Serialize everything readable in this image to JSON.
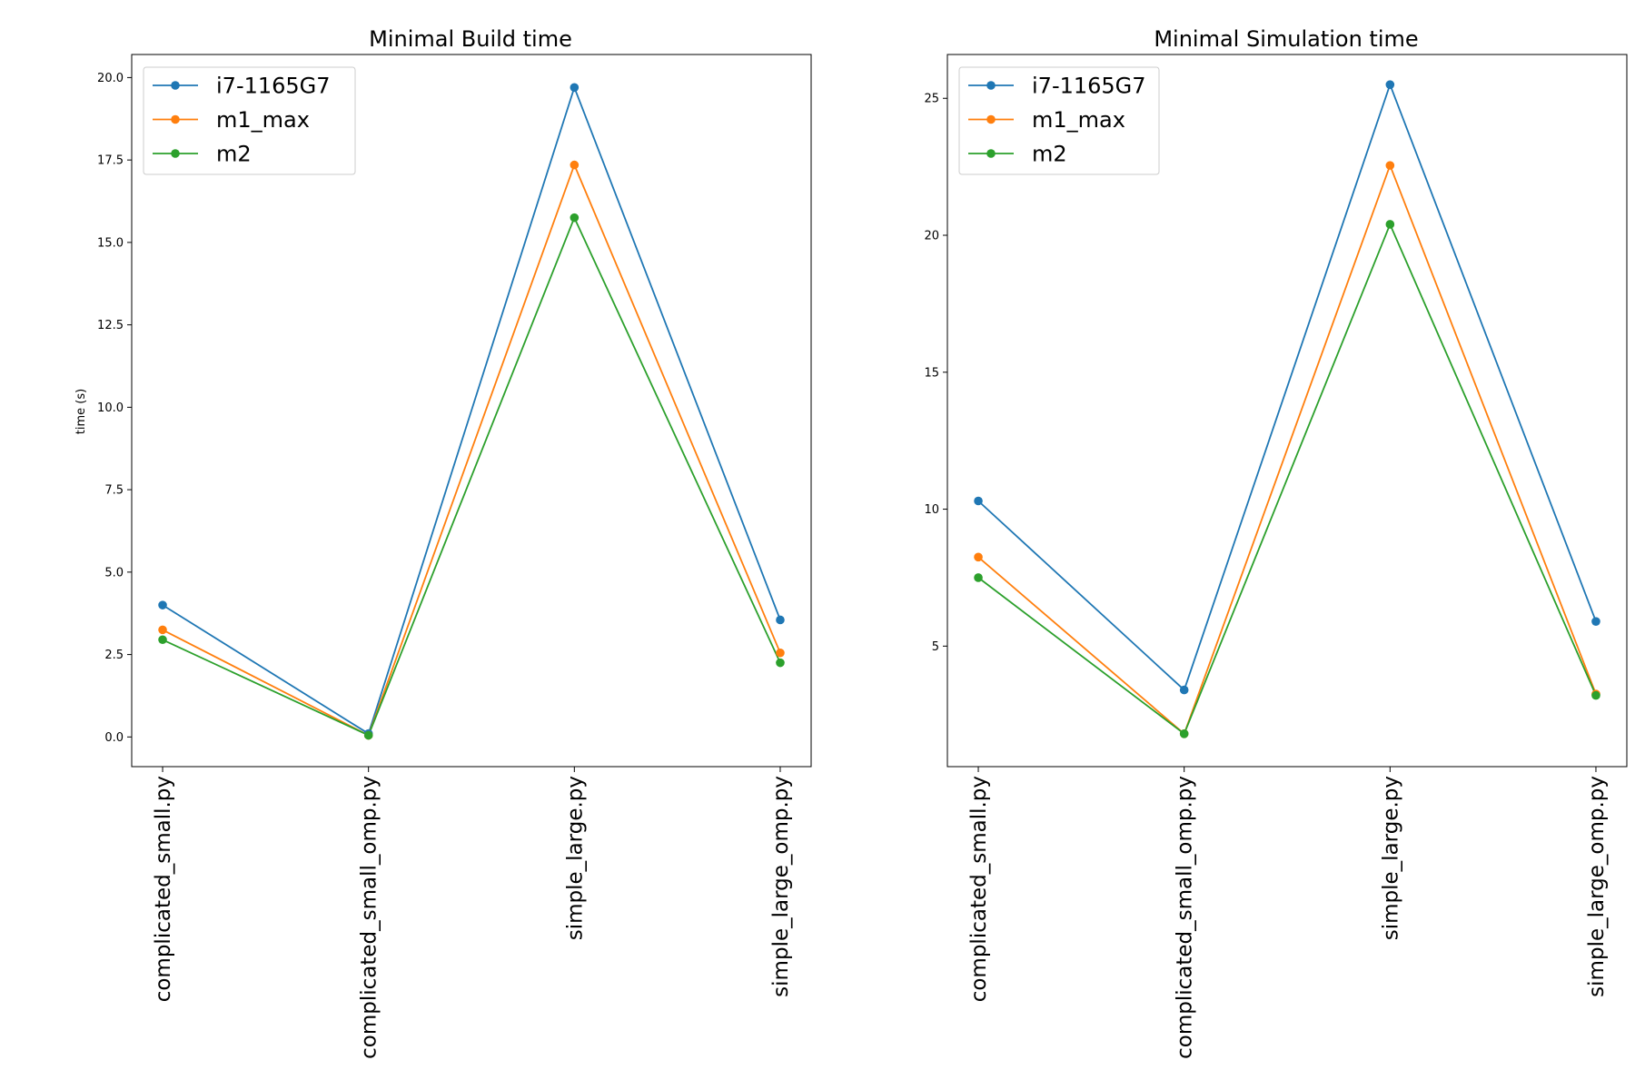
{
  "chart_data": [
    {
      "type": "line",
      "title": "Minimal Build time",
      "xlabel": "",
      "ylabel": "time (s)",
      "categories": [
        "complicated_small.py",
        "complicated_small_omp.py",
        "simple_large.py",
        "simple_large_omp.py"
      ],
      "ylim": [
        -0.9,
        20.7
      ],
      "yticks": [
        0.0,
        2.5,
        5.0,
        7.5,
        10.0,
        12.5,
        15.0,
        17.5,
        20.0
      ],
      "ytick_labels": [
        "0.0",
        "2.5",
        "5.0",
        "7.5",
        "10.0",
        "12.5",
        "15.0",
        "17.5",
        "20.0"
      ],
      "legend_position": "top-left",
      "series": [
        {
          "name": "i7-1165G7",
          "color": "#1f77b4",
          "values": [
            4.0,
            0.1,
            19.7,
            3.55
          ]
        },
        {
          "name": "m1_max",
          "color": "#ff7f0e",
          "values": [
            3.25,
            0.05,
            17.35,
            2.55
          ]
        },
        {
          "name": "m2",
          "color": "#2ca02c",
          "values": [
            2.95,
            0.05,
            15.75,
            2.25
          ]
        }
      ]
    },
    {
      "type": "line",
      "title": "Minimal Simulation time",
      "xlabel": "",
      "ylabel": "",
      "categories": [
        "complicated_small.py",
        "complicated_small_omp.py",
        "simple_large.py",
        "simple_large_omp.py"
      ],
      "ylim": [
        0.6,
        26.6
      ],
      "yticks": [
        5,
        10,
        15,
        20,
        25
      ],
      "ytick_labels": [
        "5",
        "10",
        "15",
        "20",
        "25"
      ],
      "legend_position": "top-left",
      "series": [
        {
          "name": "i7-1165G7",
          "color": "#1f77b4",
          "values": [
            10.3,
            3.4,
            25.5,
            5.9
          ]
        },
        {
          "name": "m1_max",
          "color": "#ff7f0e",
          "values": [
            8.25,
            1.8,
            22.55,
            3.25
          ]
        },
        {
          "name": "m2",
          "color": "#2ca02c",
          "values": [
            7.5,
            1.8,
            20.4,
            3.2
          ]
        }
      ]
    }
  ]
}
